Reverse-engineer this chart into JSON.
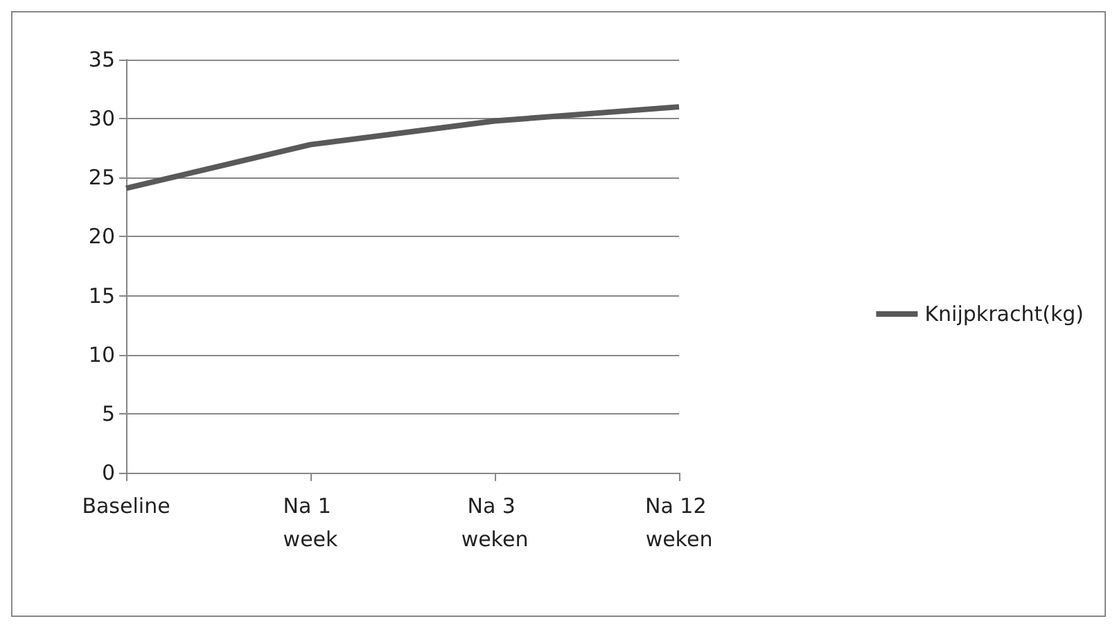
{
  "chart_data": {
    "type": "line",
    "categories": [
      "Baseline",
      "Na 1 week",
      "Na 3 weken",
      "Na 12 weken"
    ],
    "series": [
      {
        "name": "Knijpkracht(kg)",
        "color": "#595959",
        "values": [
          24.1,
          27.8,
          29.8,
          31.0
        ]
      }
    ],
    "ylim": [
      0,
      35
    ],
    "yticks": [
      0,
      5,
      10,
      15,
      20,
      25,
      30,
      35
    ],
    "grid": "y",
    "legend": "right",
    "marker": "none"
  }
}
